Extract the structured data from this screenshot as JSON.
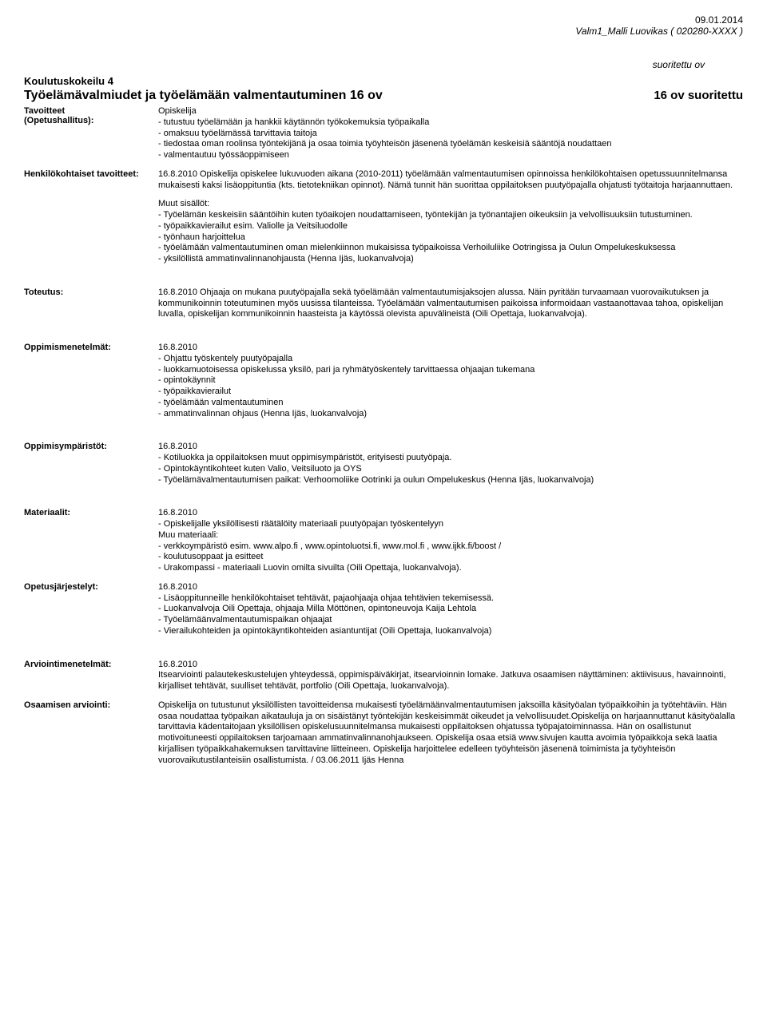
{
  "header": {
    "date": "09.01.2014",
    "reference": "Valm1_Malli Luovikas ( 020280-XXXX )"
  },
  "completed_label": "suoritettu ov",
  "course": {
    "trial_title": "Koulutuskokeilu 4",
    "title": "Työelämävalmiudet ja työelämään valmentautuminen 16 ov",
    "status": "16 ov   suoritettu"
  },
  "sections": {
    "tavoitteet": {
      "label": "Tavoitteet\n(Opetushallitus):",
      "value": "Opiskelija\n- tutustuu työelämään ja hankkii käytännön työkokemuksia työpaikalla\n- omaksuu työelämässä tarvittavia taitoja\n- tiedostaa oman roolinsa työntekijänä ja osaa toimia työyhteisön jäsenenä työelämän keskeisiä sääntöjä noudattaen\n- valmentautuu työssäoppimiseen"
    },
    "henkilokohtaiset": {
      "label": "Henkilökohtaiset tavoitteet:",
      "value": "16.8.2010 Opiskelija opiskelee  lukuvuoden aikana (2010-2011) työelämään valmentautumisen opinnoissa henkilökohtaisen opetussuunnitelmansa mukaisesti kaksi lisäoppituntia (kts. tietotekniikan opinnot). Nämä tunnit hän suorittaa oppilaitoksen puutyöpajalla  ohjatusti työtaitoja harjaannuttaen.",
      "muut_title": "Muut sisällöt:",
      "muut": "- Työelämän keskeisiin sääntöihin kuten työaikojen noudattamiseen, työntekijän ja työnantajien oikeuksiin ja velvollisuuksiin tutustuminen.\n- työpaikkavierailut esim. Valiolle ja Veitsiluodolle\n- työnhaun harjoittelua\n- työelämään valmentautuminen oman mielenkiinnon mukaisissa työpaikoissa Verhoiluliike Ootringissa ja Oulun Ompelukeskuksessa\n-  yksilöllistä ammatinvalinnanohjausta (Henna Ijäs, luokanvalvoja)"
    },
    "toteutus": {
      "label": "Toteutus:",
      "value": "16.8.2010 Ohjaaja on mukana puutyöpajalla sekä työelämään valmentautumisjaksojen alussa. Näin pyritään turvaamaan vuorovaikutuksen ja kommunikoinnin toteutuminen myös uusissa tilanteissa. Työelämään valmentautumisen paikoissa informoidaan vastaanottavaa tahoa, opiskelijan luvalla, opiskelijan kommunikoinnin haasteista ja käytössä olevista apuvälineistä  (Oili Opettaja, luokanvalvoja)."
    },
    "oppimismenetelmat": {
      "label": "Oppimismenetelmät:",
      "value": "16.8.2010\n- Ohjattu työskentely puutyöpajalla\n- luokkamuotoisessa opiskelussa yksilö, pari ja ryhmätyöskentely tarvittaessa ohjaajan tukemana\n-  opintokäynnit\n- työpaikkavierailut\n- työelämään valmentautuminen\n- ammatinvalinnan ohjaus (Henna Ijäs, luokanvalvoja)"
    },
    "oppimisymparistot": {
      "label": "Oppimisympäristöt:",
      "value": "16.8.2010\n- Kotiluokka ja oppilaitoksen muut oppimisympäristöt, erityisesti puutyöpaja.\n- Opintokäyntikohteet kuten Valio, Veitsiluoto ja OYS\n- Työelämävalmentautumisen paikat: Verhoomoliike Ootrinki ja oulun Ompelukeskus (Henna Ijäs, luokanvalvoja)"
    },
    "materiaalit": {
      "label": "Materiaalit:",
      "value": "16.8.2010\n- Opiskelijalle yksilöllisesti räätälöity materiaali puutyöpajan työskentelyyn\nMuu materiaali:\n- verkkoympäristö esim. www.alpo.fi , www.opintoluotsi.fi, www.mol.fi ,      www.ijkk.fi/boost /\n- koulutusoppaat ja esitteet\n- Urakompassi - materiaali Luovin omilta sivuilta (Oili Opettaja, luokanvalvoja)."
    },
    "opetusjarjestelyt": {
      "label": "Opetusjärjestelyt:",
      "value": "16.8.2010\n- Lisäoppitunneille henkilökohtaiset tehtävät, pajaohjaaja ohjaa tehtävien tekemisessä.\n-  Luokanvalvoja Oili Opettaja, ohjaaja Milla Möttönen, opintoneuvoja Kaija Lehtola\n- Työelämäänvalmentautumispaikan ohjaajat\n- Vierailukohteiden ja opintokäyntikohteiden asiantuntijat (Oili Opettaja, luokanvalvoja)"
    },
    "arviointimenetelmat": {
      "label": "Arviointimenetelmät:",
      "value": "16.8.2010\nItsearviointi palautekeskustelujen yhteydessä, oppimispäiväkirjat, itsearvioinnin lomake. Jatkuva osaamisen näyttäminen: aktiivisuus, havainnointi, kirjalliset tehtävät, suulliset tehtävät, portfolio (Oili Opettaja, luokanvalvoja)."
    },
    "osaamisen": {
      "label": "Osaamisen arviointi:",
      "value": "Opiskelija on tutustunut yksilöllisten tavoitteidensa mukaisesti työelämäänvalmentautumisen jaksoilla käsityöalan työpaikkoihin ja työtehtäviin. Hän osaa noudattaa työpaikan aikatauluja ja on sisäistänyt työntekijän keskeisimmät oikeudet ja velvollisuudet.Opiskelija on harjaannuttanut käsityöalalla tarvittavia kädentaitojaan yksilöllisen opiskelusuunnitelmansa mukaisesti oppilaitoksen ohjatussa työpajatoiminnassa. Hän on osallistunut motivoituneesti oppilaitoksen tarjoamaan ammatinvalinnanohjaukseen. Opiskelija osaa etsiä www.sivujen kautta avoimia työpaikkoja sekä laatia kirjallisen työpaikkahakemuksen tarvittavine liitteineen. Opiskelija harjoittelee edelleen työyhteisön jäsenenä toimimista ja työyhteisön vuorovaikutustilanteisiin osallistumista. / 03.06.2011 Ijäs Henna"
    }
  }
}
